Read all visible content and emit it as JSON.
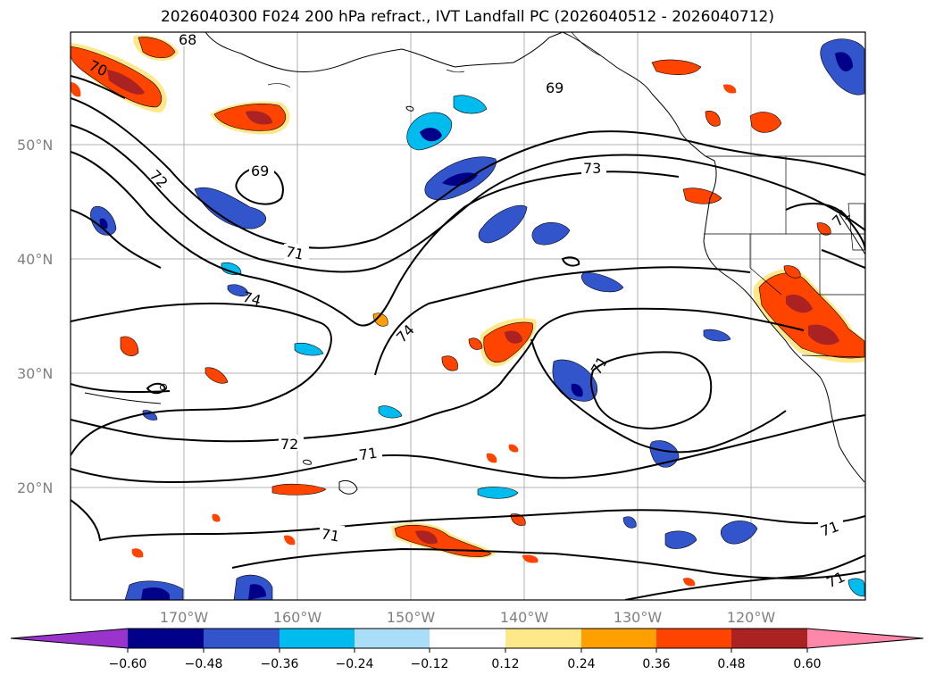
{
  "title": "2026040300 F024 200 hPa refract., IVT Landfall PC (2026040512 - 2026040712)",
  "lat_labels": [
    "50°N",
    "40°N",
    "30°N",
    "20°N"
  ],
  "lon_labels": [
    "170°W",
    "160°W",
    "150°W",
    "140°W",
    "130°W",
    "120°W"
  ],
  "contour_labels": [
    "68",
    "70",
    "69",
    "72",
    "69",
    "73",
    "71",
    "74",
    "74",
    "71",
    "72",
    "71",
    "71",
    "71",
    "71",
    "71"
  ],
  "colorbar": {
    "ticks": [
      "−0.60",
      "−0.48",
      "−0.36",
      "−0.24",
      "−0.12",
      "0.12",
      "0.24",
      "0.36",
      "0.48",
      "0.60"
    ],
    "colors": [
      "#9933cc",
      "#000088",
      "#3355cc",
      "#00bbee",
      "#aaddf8",
      "#ffffff",
      "#ffe88a",
      "#ffa000",
      "#ff4400",
      "#aa2222",
      "#ff88aa"
    ]
  },
  "fill_colors": {
    "neg_light": "#aaddf8",
    "neg_cyan": "#00bbee",
    "neg_blue": "#3355cc",
    "neg_dark": "#000088",
    "pos_yellow": "#ffe88a",
    "pos_orange": "#ffa000",
    "pos_red": "#ff4400",
    "pos_dark": "#aa2222"
  }
}
